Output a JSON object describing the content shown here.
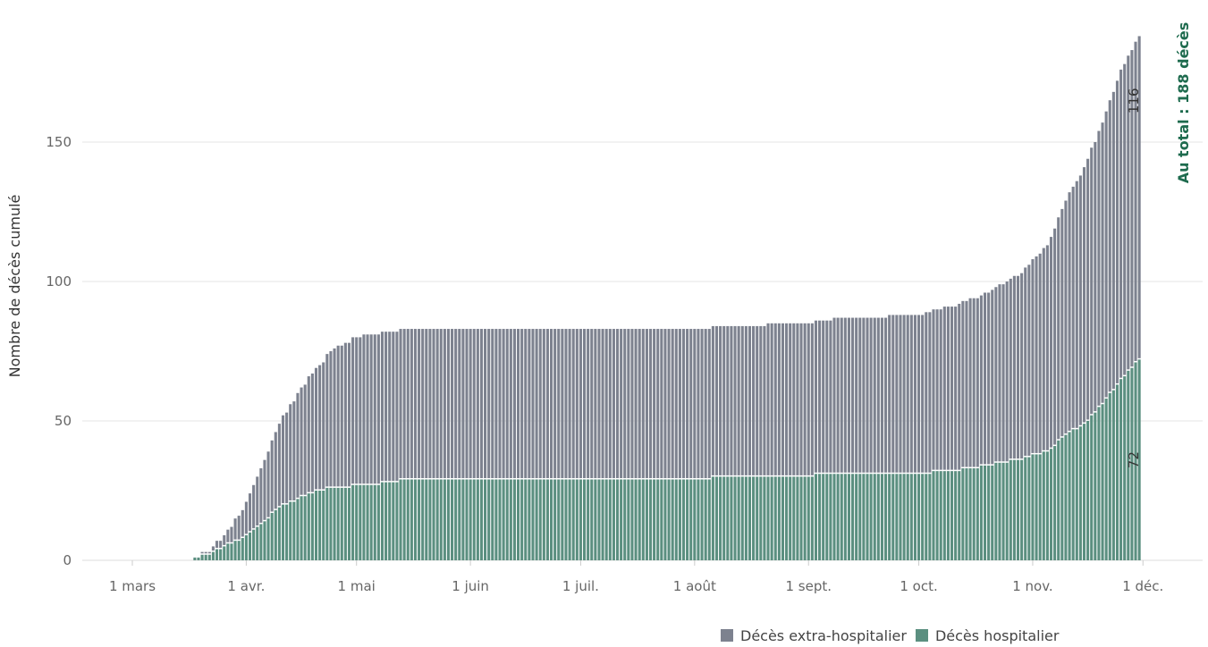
{
  "chart_data": {
    "type": "bar",
    "stacked": true,
    "title": "",
    "ylabel": "Nombre de décès cumulé",
    "ylim": [
      0,
      200
    ],
    "yticks": [
      "0",
      "50",
      "100",
      "150"
    ],
    "ytick_values": [
      0,
      50,
      100,
      150
    ],
    "x_start_date": "2020-02-20",
    "xtick_labels": [
      "1 mars",
      "1 avr.",
      "1 mai",
      "1 juin",
      "1 juil.",
      "1 août",
      "1 sept.",
      "1 oct.",
      "1 nov.",
      "1 déc."
    ],
    "xtick_dates": [
      "2020-03-01",
      "2020-04-01",
      "2020-05-01",
      "2020-06-01",
      "2020-07-01",
      "2020-08-01",
      "2020-09-01",
      "2020-10-01",
      "2020-11-01",
      "2020-12-01"
    ],
    "first_nonzero_date": "2020-03-18",
    "last_date": "2020-11-30",
    "series": [
      {
        "name": "Décès extra-hospitalier",
        "color": "#7d828f",
        "keypoints": [
          [
            "2020-03-18",
            0
          ],
          [
            "2020-03-22",
            1
          ],
          [
            "2020-03-26",
            4
          ],
          [
            "2020-03-31",
            10
          ],
          [
            "2020-04-05",
            20
          ],
          [
            "2020-04-10",
            30
          ],
          [
            "2020-04-15",
            38
          ],
          [
            "2020-04-20",
            44
          ],
          [
            "2020-04-25",
            50
          ],
          [
            "2020-04-30",
            53
          ],
          [
            "2020-05-05",
            54
          ],
          [
            "2020-05-15",
            54
          ],
          [
            "2020-06-15",
            54
          ],
          [
            "2020-07-15",
            54
          ],
          [
            "2020-08-05",
            54
          ],
          [
            "2020-08-10",
            54
          ],
          [
            "2020-08-31",
            55
          ],
          [
            "2020-09-15",
            56
          ],
          [
            "2020-09-30",
            57
          ],
          [
            "2020-10-10",
            59
          ],
          [
            "2020-10-20",
            62
          ],
          [
            "2020-10-28",
            66
          ],
          [
            "2020-11-05",
            74
          ],
          [
            "2020-11-10",
            84
          ],
          [
            "2020-11-15",
            92
          ],
          [
            "2020-11-20",
            101
          ],
          [
            "2020-11-25",
            111
          ],
          [
            "2020-11-30",
            116
          ]
        ],
        "end_value": 116
      },
      {
        "name": "Décès hospitalier",
        "color": "#5b8f80",
        "keypoints": [
          [
            "2020-03-18",
            1
          ],
          [
            "2020-03-22",
            2
          ],
          [
            "2020-03-26",
            5
          ],
          [
            "2020-03-31",
            8
          ],
          [
            "2020-04-05",
            13
          ],
          [
            "2020-04-10",
            19
          ],
          [
            "2020-04-15",
            22
          ],
          [
            "2020-04-20",
            25
          ],
          [
            "2020-04-25",
            26
          ],
          [
            "2020-05-05",
            27
          ],
          [
            "2020-05-10",
            28
          ],
          [
            "2020-05-15",
            29
          ],
          [
            "2020-06-15",
            29
          ],
          [
            "2020-07-15",
            29
          ],
          [
            "2020-08-05",
            29
          ],
          [
            "2020-08-06",
            30
          ],
          [
            "2020-09-30",
            31
          ],
          [
            "2020-10-10",
            32
          ],
          [
            "2020-10-20",
            34
          ],
          [
            "2020-10-28",
            36
          ],
          [
            "2020-11-05",
            39
          ],
          [
            "2020-11-10",
            45
          ],
          [
            "2020-11-15",
            49
          ],
          [
            "2020-11-20",
            56
          ],
          [
            "2020-11-25",
            65
          ],
          [
            "2020-11-30",
            72
          ]
        ],
        "end_value": 72
      }
    ],
    "total_label": "Au total : 188 décès",
    "total_color": "#1e6b4e",
    "end_label_outside": "116",
    "end_label_inside": "72",
    "legend_position": "bottom-right",
    "grid": true
  },
  "legend": [
    {
      "label": "Décès extra-hospitalier",
      "color": "#7d828f"
    },
    {
      "label": "Décès hospitalier",
      "color": "#5b8f80"
    }
  ]
}
